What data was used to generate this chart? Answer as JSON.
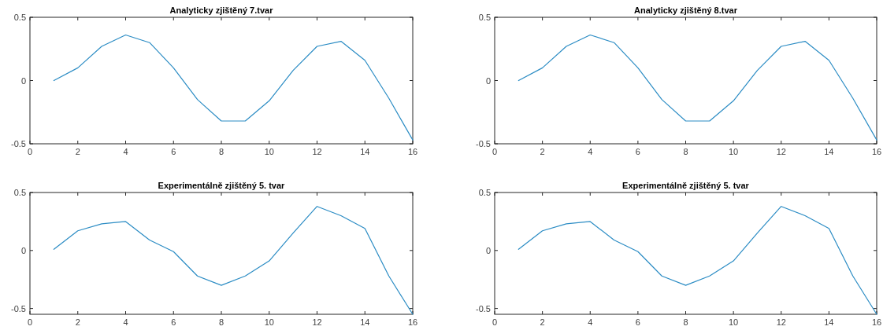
{
  "chart_data": [
    {
      "type": "line",
      "title": "Analyticky zjištěný 7.tvar",
      "x": [
        1,
        2,
        3,
        4,
        5,
        6,
        7,
        8,
        9,
        10,
        11,
        12,
        13,
        14,
        15,
        16
      ],
      "xlim": [
        0,
        16
      ],
      "xticks": [
        0,
        2,
        4,
        6,
        8,
        10,
        12,
        14,
        16
      ],
      "ylim": [
        -0.5,
        0.5
      ],
      "yticks": [
        -0.5,
        0,
        0.5
      ],
      "series": [
        {
          "color": "#2b8cc4",
          "values": [
            0,
            0.1,
            0.27,
            0.36,
            0.3,
            0.1,
            -0.15,
            -0.32,
            -0.32,
            -0.16,
            0.08,
            0.27,
            0.31,
            0.16,
            -0.14,
            -0.47
          ]
        }
      ]
    },
    {
      "type": "line",
      "title": "Analyticky zjištěný 8.tvar",
      "x": [
        1,
        2,
        3,
        4,
        5,
        6,
        7,
        8,
        9,
        10,
        11,
        12,
        13,
        14,
        15,
        16
      ],
      "xlim": [
        0,
        16
      ],
      "xticks": [
        0,
        2,
        4,
        6,
        8,
        10,
        12,
        14,
        16
      ],
      "ylim": [
        -0.5,
        0.5
      ],
      "yticks": [
        -0.5,
        0,
        0.5
      ],
      "series": [
        {
          "color": "#2b8cc4",
          "values": [
            0,
            0.1,
            0.27,
            0.36,
            0.3,
            0.1,
            -0.15,
            -0.32,
            -0.32,
            -0.16,
            0.08,
            0.27,
            0.31,
            0.16,
            -0.14,
            -0.47
          ]
        }
      ]
    },
    {
      "type": "line",
      "title": "Experimentálně zjištěný 5. tvar",
      "x": [
        1,
        2,
        3,
        4,
        5,
        6,
        7,
        8,
        9,
        10,
        11,
        12,
        13,
        14,
        15,
        16
      ],
      "xlim": [
        0,
        16
      ],
      "xticks": [
        0,
        2,
        4,
        6,
        8,
        10,
        12,
        14,
        16
      ],
      "ylim": [
        -0.55,
        0.5
      ],
      "yticks": [
        -0.5,
        0,
        0.5
      ],
      "series": [
        {
          "color": "#2b8cc4",
          "values": [
            0.01,
            0.17,
            0.23,
            0.25,
            0.09,
            -0.01,
            -0.22,
            -0.3,
            -0.22,
            -0.09,
            0.15,
            0.38,
            0.3,
            0.19,
            -0.22,
            -0.55
          ]
        }
      ]
    },
    {
      "type": "line",
      "title": "Experimentálně zjištěný 5. tvar",
      "x": [
        1,
        2,
        3,
        4,
        5,
        6,
        7,
        8,
        9,
        10,
        11,
        12,
        13,
        14,
        15,
        16
      ],
      "xlim": [
        0,
        16
      ],
      "xticks": [
        0,
        2,
        4,
        6,
        8,
        10,
        12,
        14,
        16
      ],
      "ylim": [
        -0.55,
        0.5
      ],
      "yticks": [
        -0.5,
        0,
        0.5
      ],
      "series": [
        {
          "color": "#2b8cc4",
          "values": [
            0.01,
            0.17,
            0.23,
            0.25,
            0.09,
            -0.01,
            -0.22,
            -0.3,
            -0.22,
            -0.09,
            0.15,
            0.38,
            0.3,
            0.19,
            -0.22,
            -0.55
          ]
        }
      ]
    }
  ]
}
